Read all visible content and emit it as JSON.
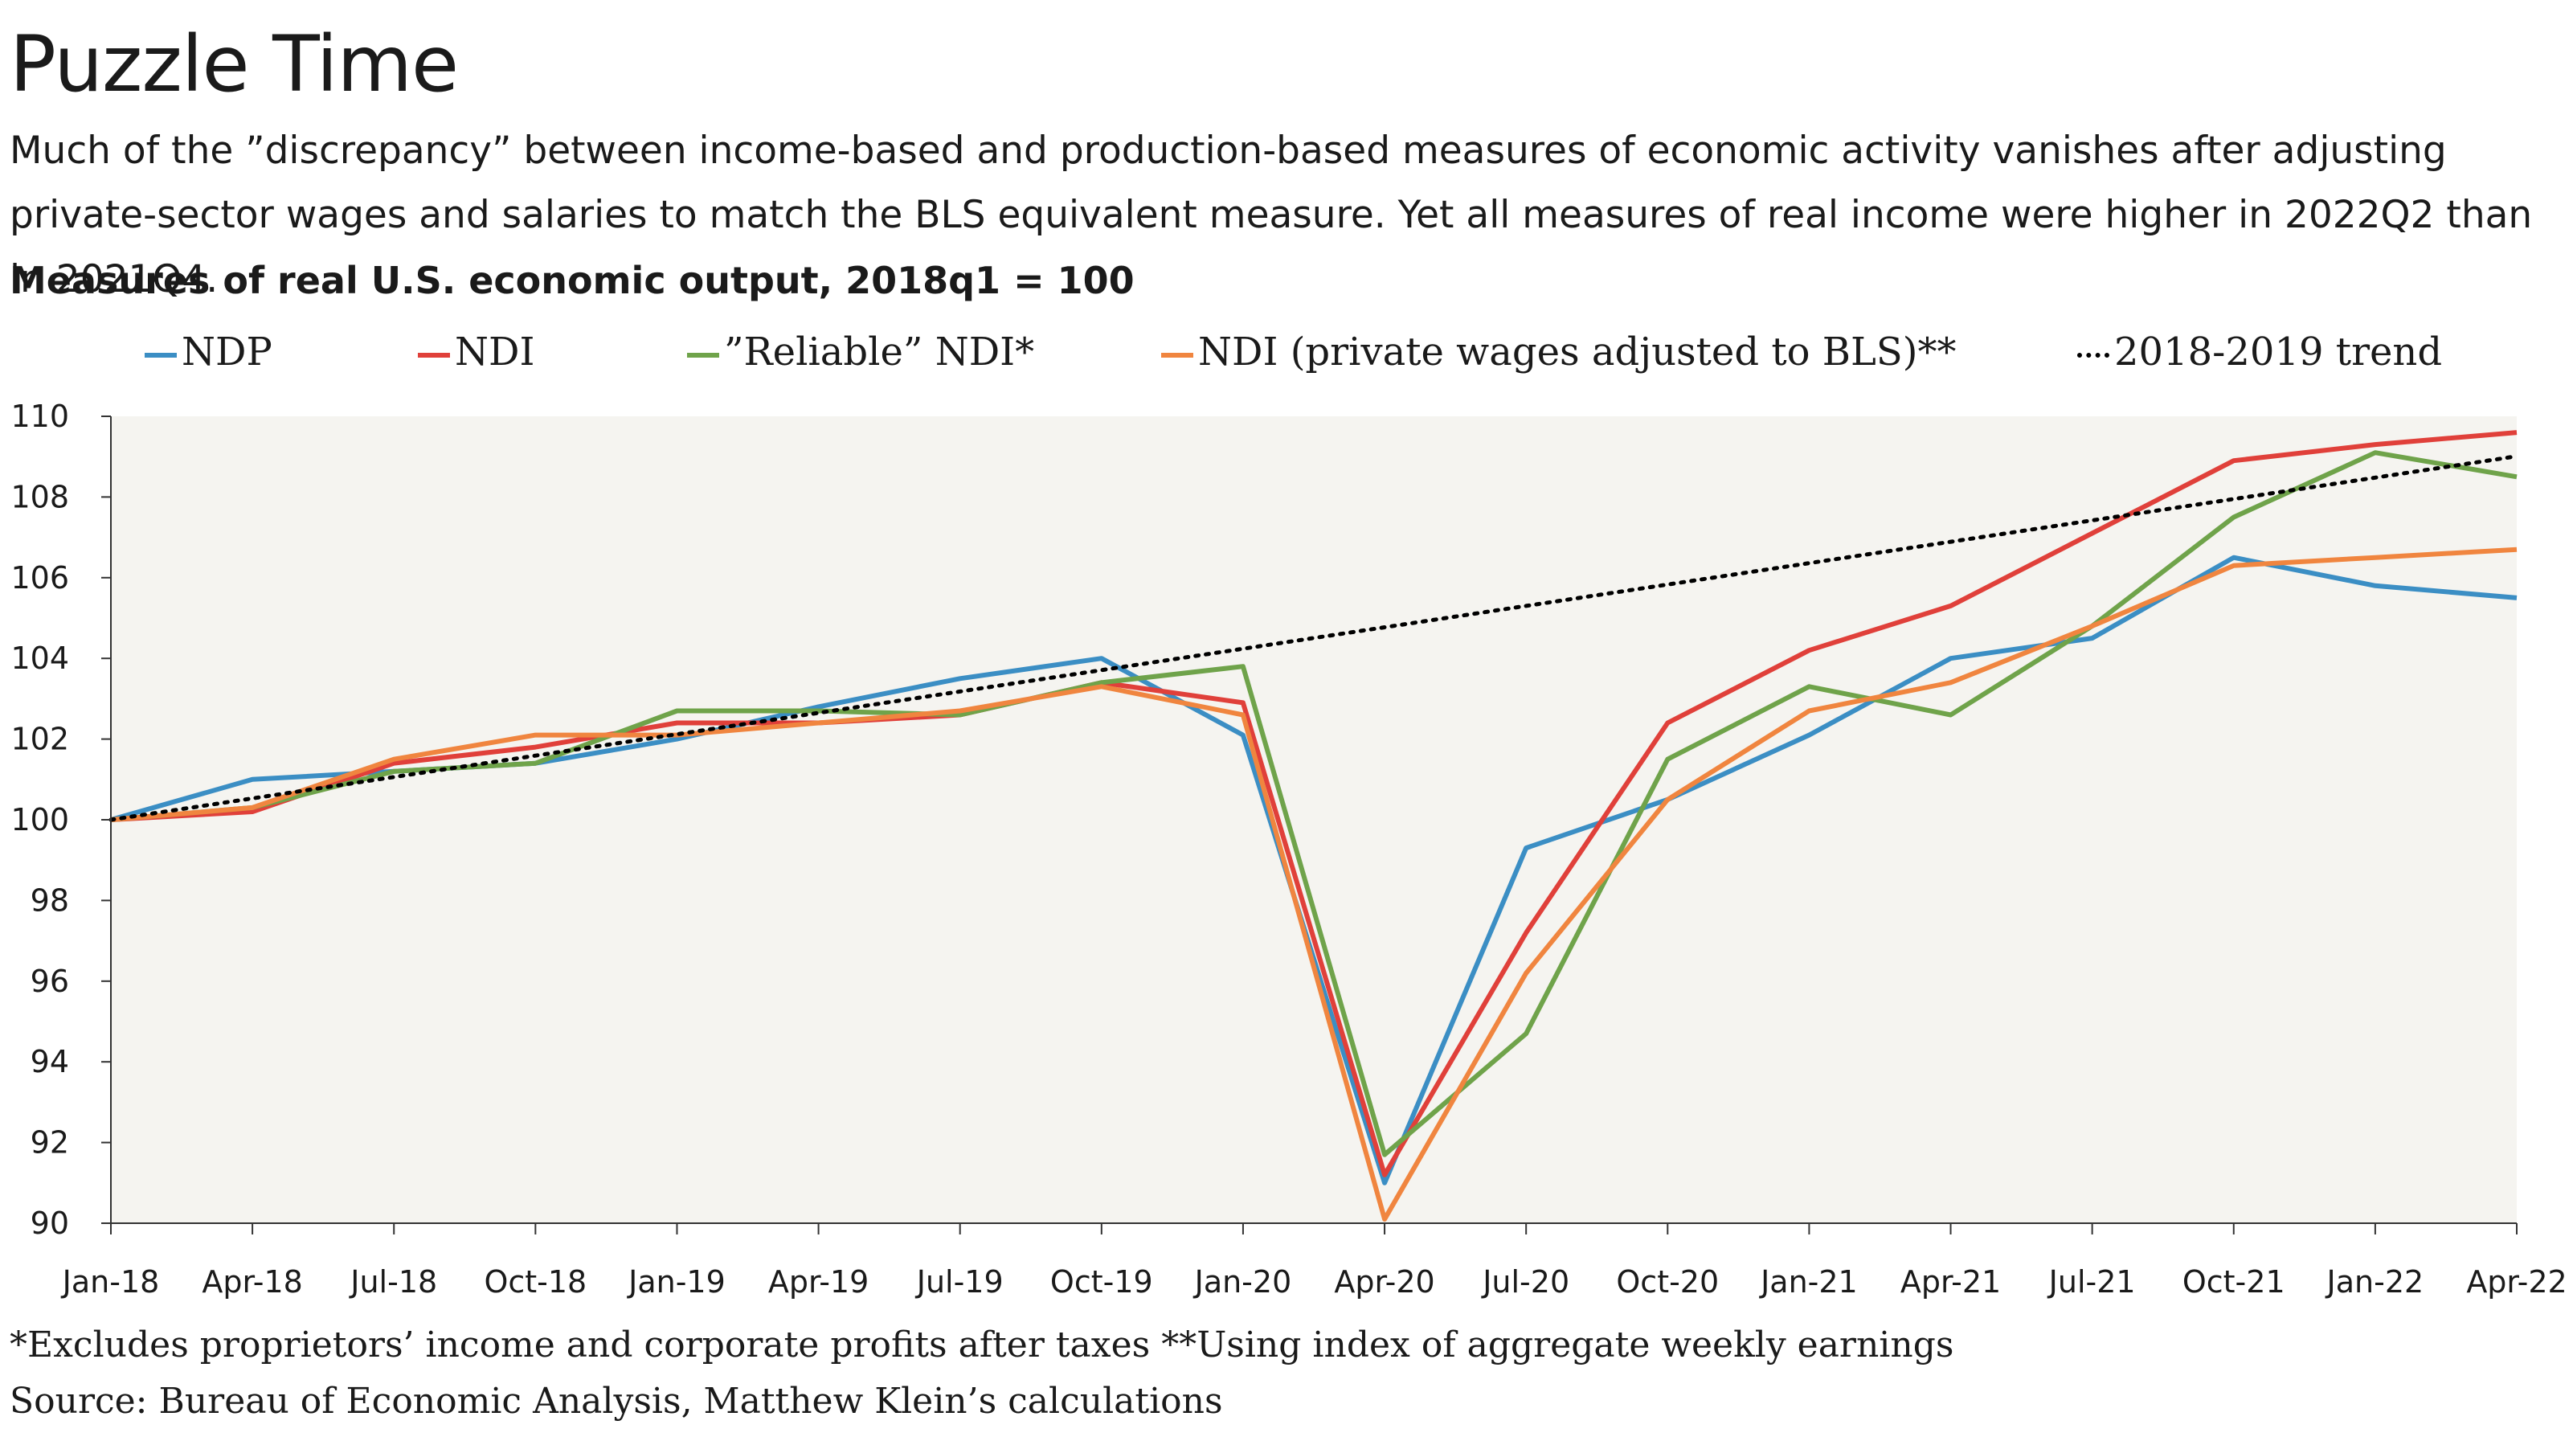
{
  "header": {
    "title": "Puzzle Time",
    "subtitle": "Much of the ”discrepancy” between income-based and production-based measures of economic activity vanishes after adjusting private-sector wages and salaries to match the BLS equivalent measure. Yet all measures of real income were higher in 2022Q2 than in 2021Q4.",
    "chart_title": "Measures of real U.S. economic output, 2018q1 = 100"
  },
  "legend": [
    {
      "label": "NDP",
      "color": "#3b8ec4",
      "style": "solid"
    },
    {
      "label": "NDI",
      "color": "#e0403a",
      "style": "solid"
    },
    {
      "label": "”Reliable” NDI*",
      "color": "#6fa34a",
      "style": "solid"
    },
    {
      "label": "NDI (private wages adjusted to BLS)**",
      "color": "#f0853f",
      "style": "solid"
    },
    {
      "label": "2018-2019 trend",
      "color": "#000000",
      "style": "dotted"
    }
  ],
  "footnotes": {
    "note": "*Excludes proprietors’ income and corporate profits after taxes **Using index of aggregate weekly earnings",
    "source": "Source: Bureau of Economic Analysis, Matthew Klein’s calculations"
  },
  "chart_data": {
    "type": "line",
    "title": "Measures of real U.S. economic output, 2018q1 = 100",
    "categories": [
      "Jan-18",
      "Apr-18",
      "Jul-18",
      "Oct-18",
      "Jan-19",
      "Apr-19",
      "Jul-19",
      "Oct-19",
      "Jan-20",
      "Apr-20",
      "Jul-20",
      "Oct-20",
      "Jan-21",
      "Apr-21",
      "Jul-21",
      "Oct-21",
      "Jan-22",
      "Apr-22"
    ],
    "ylim": [
      90,
      110
    ],
    "yticks": [
      90,
      92,
      94,
      96,
      98,
      100,
      102,
      104,
      106,
      108,
      110
    ],
    "legend_position": "top",
    "plot_background": "#f5f4f0",
    "series": [
      {
        "name": "NDP",
        "color": "#3b8ec4",
        "values": [
          100.0,
          101.0,
          101.2,
          101.4,
          102.0,
          102.8,
          103.5,
          104.0,
          102.1,
          91.0,
          99.3,
          100.5,
          102.1,
          104.0,
          104.5,
          106.5,
          105.8,
          105.5
        ]
      },
      {
        "name": "NDI",
        "color": "#e0403a",
        "values": [
          100.0,
          100.2,
          101.4,
          101.8,
          102.4,
          102.4,
          102.6,
          103.4,
          102.9,
          91.2,
          97.2,
          102.4,
          104.2,
          105.3,
          107.1,
          108.9,
          109.3,
          109.6
        ]
      },
      {
        "name": "”Reliable” NDI*",
        "color": "#6fa34a",
        "values": [
          100.0,
          100.3,
          101.2,
          101.4,
          102.7,
          102.7,
          102.6,
          103.4,
          103.8,
          91.7,
          94.7,
          101.5,
          103.3,
          102.6,
          104.8,
          107.5,
          109.1,
          108.5
        ]
      },
      {
        "name": "NDI (private wages adjusted to BLS)**",
        "color": "#f0853f",
        "values": [
          100.0,
          100.3,
          101.5,
          102.1,
          102.1,
          102.4,
          102.7,
          103.3,
          102.6,
          90.1,
          96.2,
          100.5,
          102.7,
          103.4,
          104.8,
          106.3,
          106.5,
          106.7
        ]
      },
      {
        "name": "2018-2019 trend",
        "color": "#000000",
        "style": "dotted",
        "values": [
          100.0,
          100.53,
          101.06,
          101.59,
          102.12,
          102.65,
          103.18,
          103.71,
          104.24,
          104.77,
          105.3,
          105.83,
          106.36,
          106.89,
          107.42,
          107.95,
          108.48,
          109.01
        ]
      }
    ]
  }
}
